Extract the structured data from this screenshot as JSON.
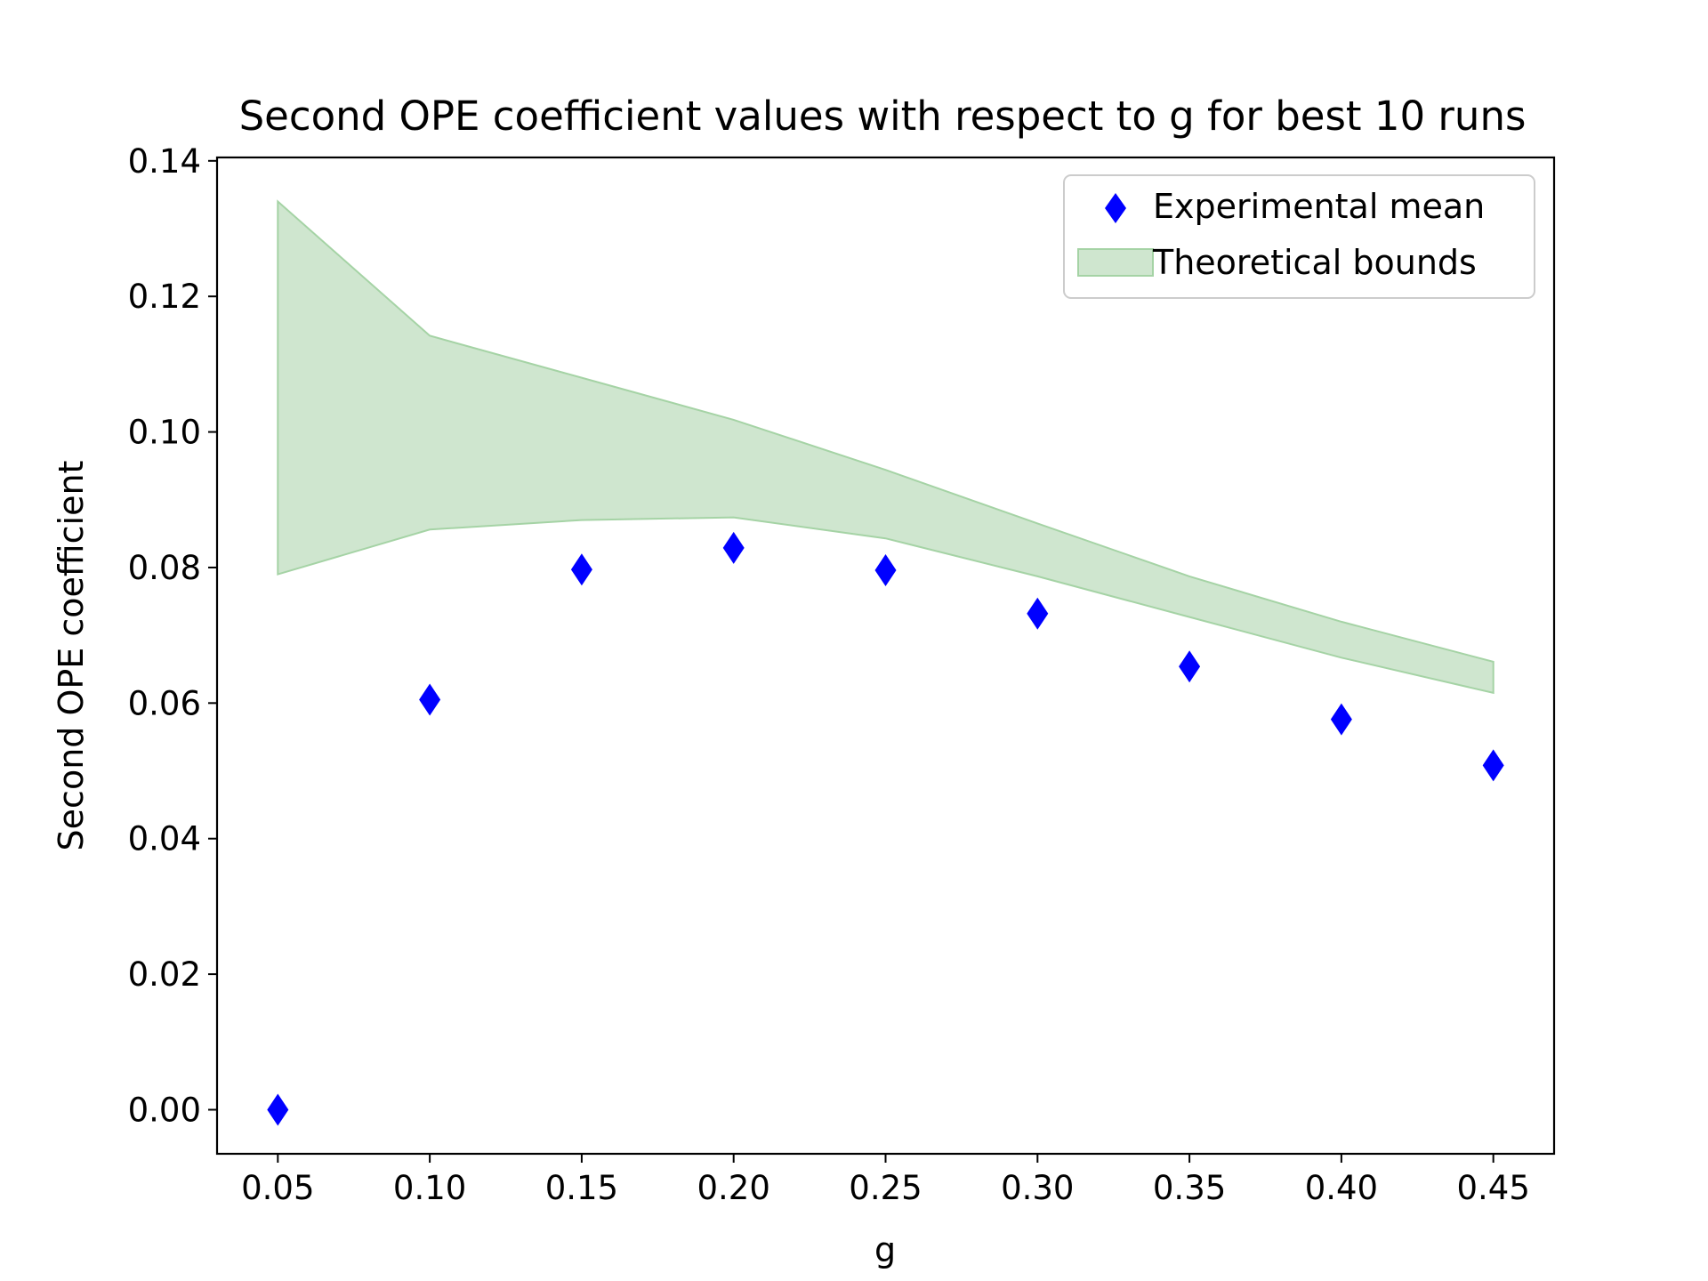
{
  "chart_data": {
    "type": "scatter",
    "title": "Second OPE coefficient values with respect to g for best 10 runs",
    "xlabel": "g",
    "ylabel": "Second OPE coefficient",
    "xlim": [
      0.03,
      0.47
    ],
    "ylim": [
      -0.0065,
      0.1405
    ],
    "xticks": [
      0.05,
      0.1,
      0.15,
      0.2,
      0.25,
      0.3,
      0.35,
      0.4,
      0.45
    ],
    "xtick_labels": [
      "0.05",
      "0.10",
      "0.15",
      "0.20",
      "0.25",
      "0.30",
      "0.35",
      "0.40",
      "0.45"
    ],
    "yticks": [
      0.0,
      0.02,
      0.04,
      0.06,
      0.08,
      0.1,
      0.12,
      0.14
    ],
    "ytick_labels": [
      "0.00",
      "0.02",
      "0.04",
      "0.06",
      "0.08",
      "0.10",
      "0.12",
      "0.14"
    ],
    "grid": false,
    "legend_position": "top-right",
    "series": [
      {
        "name": "Experimental mean",
        "kind": "scatter",
        "marker": "thin-diamond",
        "color": "#0000ff",
        "x": [
          0.05,
          0.1,
          0.15,
          0.2,
          0.25,
          0.3,
          0.35,
          0.4,
          0.45
        ],
        "y": [
          0.0,
          0.0605,
          0.0797,
          0.0829,
          0.0796,
          0.0732,
          0.0654,
          0.0576,
          0.0508
        ]
      },
      {
        "name": "Theoretical bounds",
        "kind": "band",
        "color": "#a5d3a5",
        "fill_color": "#cfe6cf",
        "x": [
          0.05,
          0.1,
          0.15,
          0.2,
          0.25,
          0.3,
          0.35,
          0.4,
          0.45
        ],
        "y_lower": [
          0.079,
          0.0856,
          0.087,
          0.0874,
          0.0843,
          0.0787,
          0.0727,
          0.0667,
          0.0615
        ],
        "y_upper": [
          0.134,
          0.1142,
          0.108,
          0.1018,
          0.0944,
          0.0865,
          0.0787,
          0.072,
          0.0661
        ]
      }
    ]
  }
}
